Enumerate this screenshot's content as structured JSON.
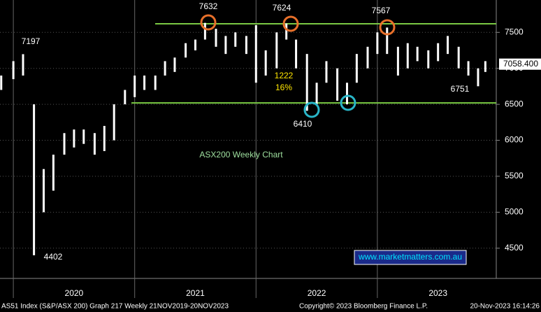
{
  "chart_data": {
    "type": "range",
    "x": [
      2019.9,
      2020.0,
      2020.08,
      2020.17,
      2020.25,
      2020.33,
      2020.42,
      2020.5,
      2020.58,
      2020.67,
      2020.75,
      2020.83,
      2020.92,
      2021.0,
      2021.08,
      2021.17,
      2021.25,
      2021.33,
      2021.42,
      2021.5,
      2021.58,
      2021.67,
      2021.75,
      2021.83,
      2021.92,
      2022.0,
      2022.08,
      2022.17,
      2022.25,
      2022.33,
      2022.42,
      2022.5,
      2022.58,
      2022.67,
      2022.75,
      2022.83,
      2022.92,
      2023.0,
      2023.08,
      2023.17,
      2023.25,
      2023.33,
      2023.42,
      2023.5,
      2023.58,
      2023.67,
      2023.75,
      2023.83,
      2023.89
    ],
    "high": [
      6900,
      7100,
      7197,
      6500,
      5600,
      5800,
      6100,
      6150,
      6150,
      6100,
      6200,
      6500,
      6700,
      6900,
      6900,
      6900,
      7100,
      7150,
      7350,
      7400,
      7632,
      7550,
      7450,
      7500,
      7450,
      7600,
      7250,
      7500,
      7624,
      7400,
      7200,
      6800,
      7100,
      7000,
      6800,
      7200,
      7300,
      7500,
      7567,
      7300,
      7350,
      7300,
      7250,
      7350,
      7450,
      7300,
      7100,
      7000,
      7100
    ],
    "low": [
      6700,
      6850,
      6900,
      4402,
      5000,
      5300,
      5800,
      5900,
      5950,
      5800,
      5850,
      6000,
      6500,
      6600,
      6700,
      6700,
      6900,
      6950,
      7150,
      7250,
      7400,
      7300,
      7200,
      7300,
      7200,
      6800,
      6900,
      7000,
      7400,
      7000,
      6410,
      6500,
      6800,
      6550,
      6500,
      6800,
      7000,
      7200,
      7200,
      6900,
      7000,
      7100,
      7000,
      7100,
      7200,
      7000,
      6900,
      6751,
      6950
    ],
    "color": "#ffffff",
    "xlim": [
      2019.89,
      2023.98
    ],
    "xticks": [
      2020,
      2021,
      2022,
      2023
    ],
    "year_labels": [
      2020,
      2021,
      2022,
      2023
    ],
    "ylim": [
      4080,
      7950
    ],
    "yticks": [
      4500,
      5000,
      5500,
      6000,
      6500,
      7000,
      7500
    ],
    "levels": [
      7620,
      6520
    ],
    "level_color": "#7ac943",
    "last_price": {
      "value": 7058.4,
      "label": "7058.400"
    },
    "annotations": [
      "7197",
      "7632",
      "7624",
      "7567",
      "1222",
      "16%",
      "6410",
      "6751",
      "4402",
      "ASX200 Weekly Chart",
      "www.marketmatters.com.au"
    ],
    "footer": [
      "AS51 Index (S&P/ASX 200) Graph 217  Weekly 21NOV2019-20NOV2023",
      "Copyright© 2023 Bloomberg Finance L.P.",
      "20-Nov-2023 16:14:26"
    ]
  }
}
